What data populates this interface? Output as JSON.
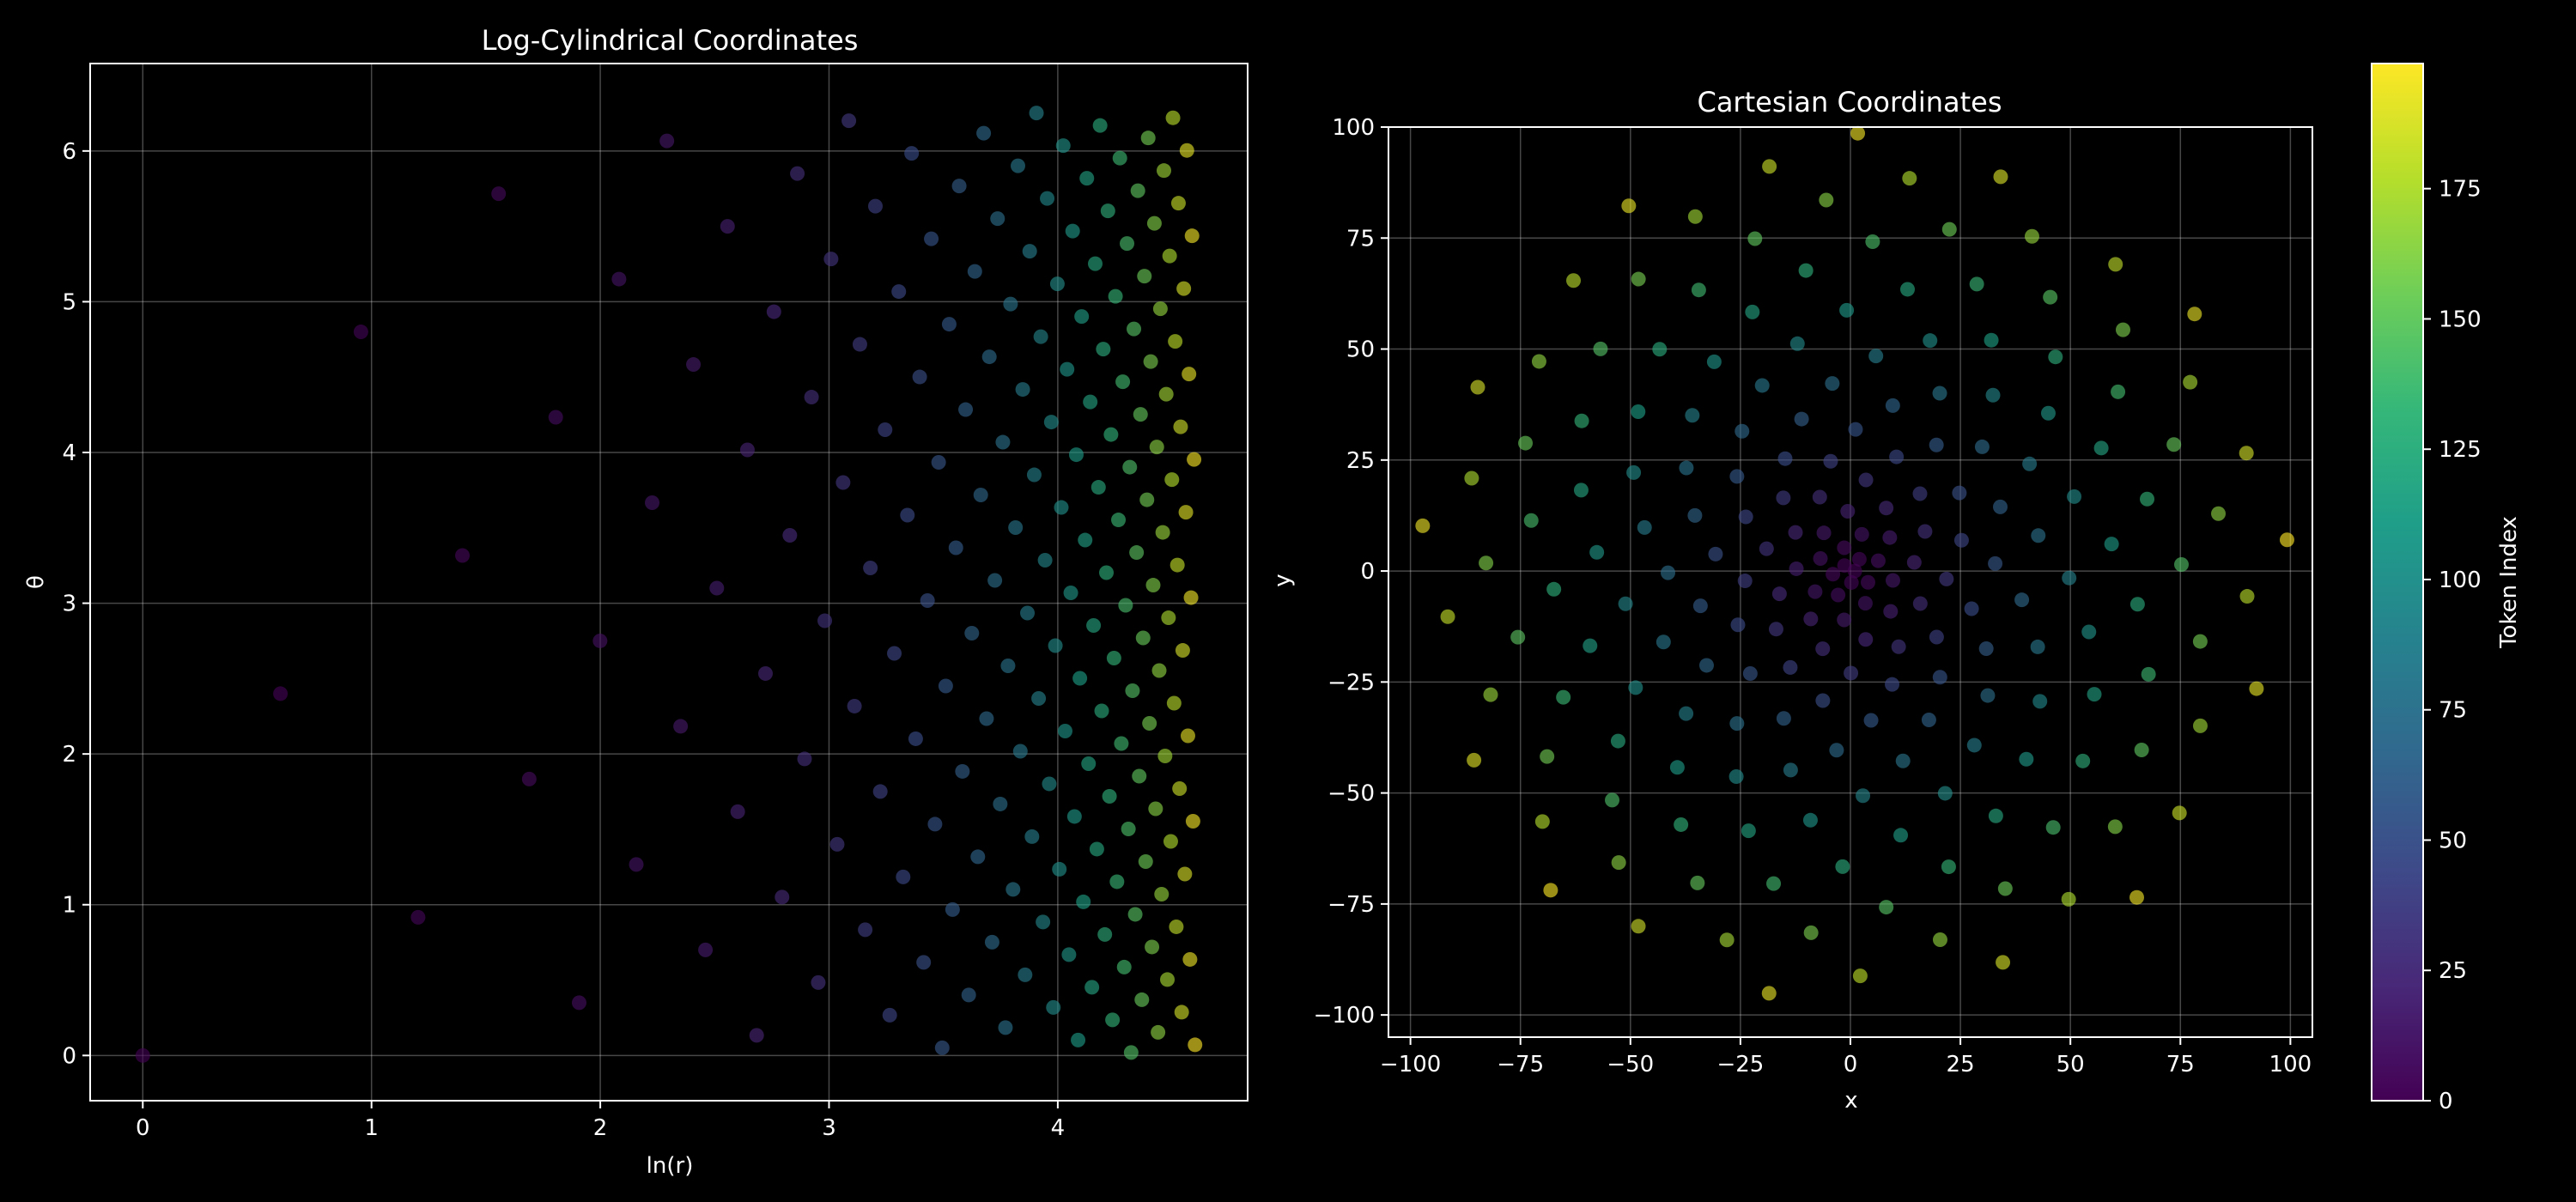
{
  "colorbar": {
    "label": "Token Index",
    "ticks": [
      0,
      25,
      50,
      75,
      100,
      125,
      150,
      175
    ],
    "range": [
      0,
      199
    ],
    "colormap": [
      "#440154",
      "#482878",
      "#3e4a89",
      "#31688e",
      "#26828e",
      "#1f9e89",
      "#35b779",
      "#6ece58",
      "#b5de2b",
      "#fde725"
    ]
  },
  "chart_data": [
    {
      "type": "scatter",
      "title": "Log-Cylindrical Coordinates",
      "xlabel": "ln(r)",
      "ylabel": "θ",
      "xlim": [
        -0.23,
        4.83
      ],
      "ylim": [
        -0.3,
        6.58
      ],
      "xticks": [
        0,
        1,
        2,
        3,
        4
      ],
      "yticks": [
        0,
        1,
        2,
        3,
        4,
        5,
        6
      ],
      "grid": true,
      "color_by": "token index (0–199)",
      "points": "200 tokens on a golden-angle spiral: ln(r) = ln(sqrt(i+1)) * 4.6/ln(sqrt(200)), θ = (i * 2.39996) mod 2π"
    },
    {
      "type": "scatter",
      "title": "Cartesian Coordinates",
      "xlabel": "x",
      "ylabel": "y",
      "xlim": [
        -105,
        105
      ],
      "ylim": [
        -105,
        100
      ],
      "xticks": [
        -100,
        -75,
        -50,
        -25,
        0,
        25,
        50,
        75,
        100
      ],
      "yticks": [
        -100,
        -75,
        -50,
        -25,
        0,
        25,
        50,
        75,
        100
      ],
      "grid": true,
      "color_by": "token index (0–199)",
      "points": "x = exp(ln r) * cos θ, y = exp(ln r) * sin θ for the same 200 tokens"
    }
  ]
}
